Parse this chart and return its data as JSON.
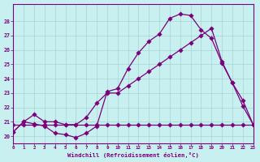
{
  "bg_color": "#c8f0f0",
  "line_color": "#7b007b",
  "grid_color": "#a8d4d4",
  "xlim": [
    0,
    23
  ],
  "ylim": [
    19.5,
    29.2
  ],
  "xticks": [
    0,
    1,
    2,
    3,
    4,
    5,
    6,
    7,
    8,
    9,
    10,
    11,
    12,
    13,
    14,
    15,
    16,
    17,
    18,
    19,
    20,
    21,
    22,
    23
  ],
  "yticks": [
    20,
    21,
    22,
    23,
    24,
    25,
    26,
    27,
    28
  ],
  "xlabel": "Windchill (Refroidissement éolien,°C)",
  "line1_x": [
    0,
    1,
    2,
    3,
    4,
    5,
    6,
    7,
    8,
    9,
    10,
    11,
    12,
    13,
    14,
    15,
    16,
    17,
    18,
    19,
    20,
    21,
    22,
    23
  ],
  "line1_y": [
    20.3,
    21.0,
    20.85,
    20.7,
    20.2,
    20.1,
    19.9,
    20.2,
    20.7,
    23.1,
    23.3,
    24.7,
    25.8,
    26.6,
    27.1,
    28.2,
    28.5,
    28.4,
    27.4,
    26.8,
    25.1,
    23.7,
    22.1,
    20.8
  ],
  "line2_x": [
    0,
    1,
    2,
    3,
    4,
    5,
    6,
    7,
    8,
    9,
    10,
    11,
    12,
    13,
    14,
    15,
    16,
    17,
    18,
    19,
    20,
    21,
    22,
    23
  ],
  "line2_y": [
    20.3,
    21.0,
    21.5,
    21.0,
    21.0,
    20.8,
    20.8,
    21.3,
    22.3,
    23.0,
    23.0,
    23.5,
    24.0,
    24.5,
    25.0,
    25.5,
    26.0,
    26.5,
    27.0,
    27.5,
    25.2,
    23.7,
    22.5,
    20.8
  ],
  "line3_x": [
    0,
    1,
    2,
    3,
    4,
    5,
    6,
    7,
    8,
    9,
    10,
    11,
    12,
    13,
    14,
    15,
    16,
    17,
    18,
    19,
    20,
    21,
    22,
    23
  ],
  "line3_y": [
    20.8,
    20.8,
    20.8,
    20.8,
    20.8,
    20.8,
    20.8,
    20.8,
    20.8,
    20.8,
    20.8,
    20.8,
    20.8,
    20.8,
    20.8,
    20.8,
    20.8,
    20.8,
    20.8,
    20.8,
    20.8,
    20.8,
    20.8,
    20.8
  ]
}
